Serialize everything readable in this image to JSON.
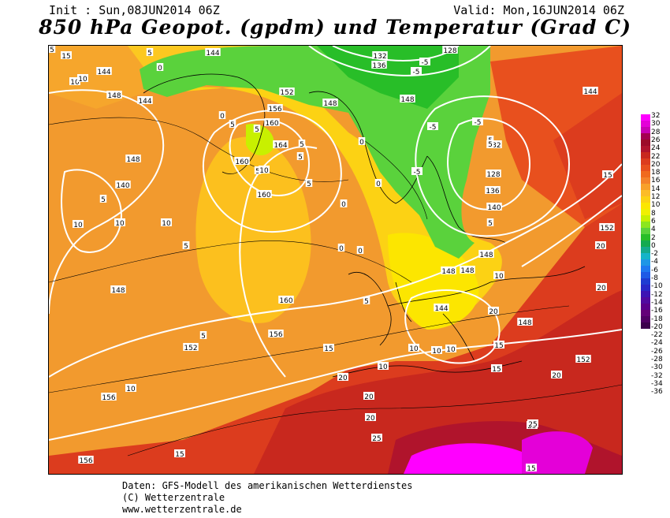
{
  "header": {
    "init": "Init : Sun,08JUN2014 06Z",
    "valid": "Valid: Mon,16JUN2014 06Z",
    "title": "850 hPa Geopot. (gpdm) und Temperatur (Grad C)"
  },
  "legend": {
    "ticks": [
      "32",
      "30",
      "28",
      "26",
      "24",
      "22",
      "20",
      "18",
      "16",
      "14",
      "12",
      "10",
      "8",
      "6",
      "4",
      "2",
      "0",
      "-2",
      "-4",
      "-6",
      "-8",
      "-10",
      "-12",
      "-14",
      "-16",
      "-18",
      "-20",
      "-22",
      "-24",
      "-26",
      "-28",
      "-30",
      "-32",
      "-34",
      "-36"
    ],
    "colors": [
      "#ff00ff",
      "#e400d8",
      "#c800b4",
      "#a40050",
      "#9c0c28",
      "#b0142c",
      "#c8281e",
      "#dc3c1e",
      "#e8501e",
      "#f06a1e",
      "#f4822a",
      "#f8a02a",
      "#fcbc28",
      "#fcd214",
      "#fce600",
      "#f0f000",
      "#c8f000",
      "#8ce61e",
      "#5ad23c",
      "#28be28",
      "#14aa50",
      "#14aa8c",
      "#14b4c8",
      "#1e96e6",
      "#1e78f0",
      "#1e5ae6",
      "#1e3cd2",
      "#2828c8",
      "#3c14b4",
      "#500aa0",
      "#5a008c",
      "#640078",
      "#500064",
      "#3c004c"
    ]
  },
  "contour_labels": {
    "geopotential": [
      "144",
      "144",
      "148",
      "144",
      "128",
      "136",
      "132",
      "152",
      "156",
      "160",
      "164",
      "160",
      "148",
      "148",
      "140",
      "148",
      "148",
      "160",
      "148",
      "156",
      "152",
      "160",
      "140",
      "136",
      "132",
      "128",
      "144",
      "148",
      "148",
      "152",
      "152",
      "156",
      "156",
      "144",
      "148"
    ],
    "temperature": [
      "5",
      "15",
      "10",
      "10",
      "5",
      "0",
      "5",
      "5",
      "5",
      "5",
      "0",
      "5",
      "5",
      "10",
      "5",
      "-5",
      "-5",
      "-5",
      "-5",
      "-5",
      "0",
      "0",
      "0",
      "5",
      "5",
      "10",
      "10",
      "5",
      "15",
      "10",
      "10",
      "10",
      "15",
      "20",
      "20",
      "20",
      "20",
      "25",
      "25",
      "25",
      "15",
      "15",
      "10",
      "10",
      "10",
      "15",
      "20",
      "20",
      "20",
      "0",
      "5",
      "10",
      "5",
      "15",
      "5",
      "5",
      "0",
      "0"
    ]
  },
  "footer": {
    "line1": "Daten: GFS-Modell des amerikanischen Wetterdienstes",
    "line2": "(C) Wetterzentrale",
    "line3": "www.wetterzentrale.de"
  }
}
